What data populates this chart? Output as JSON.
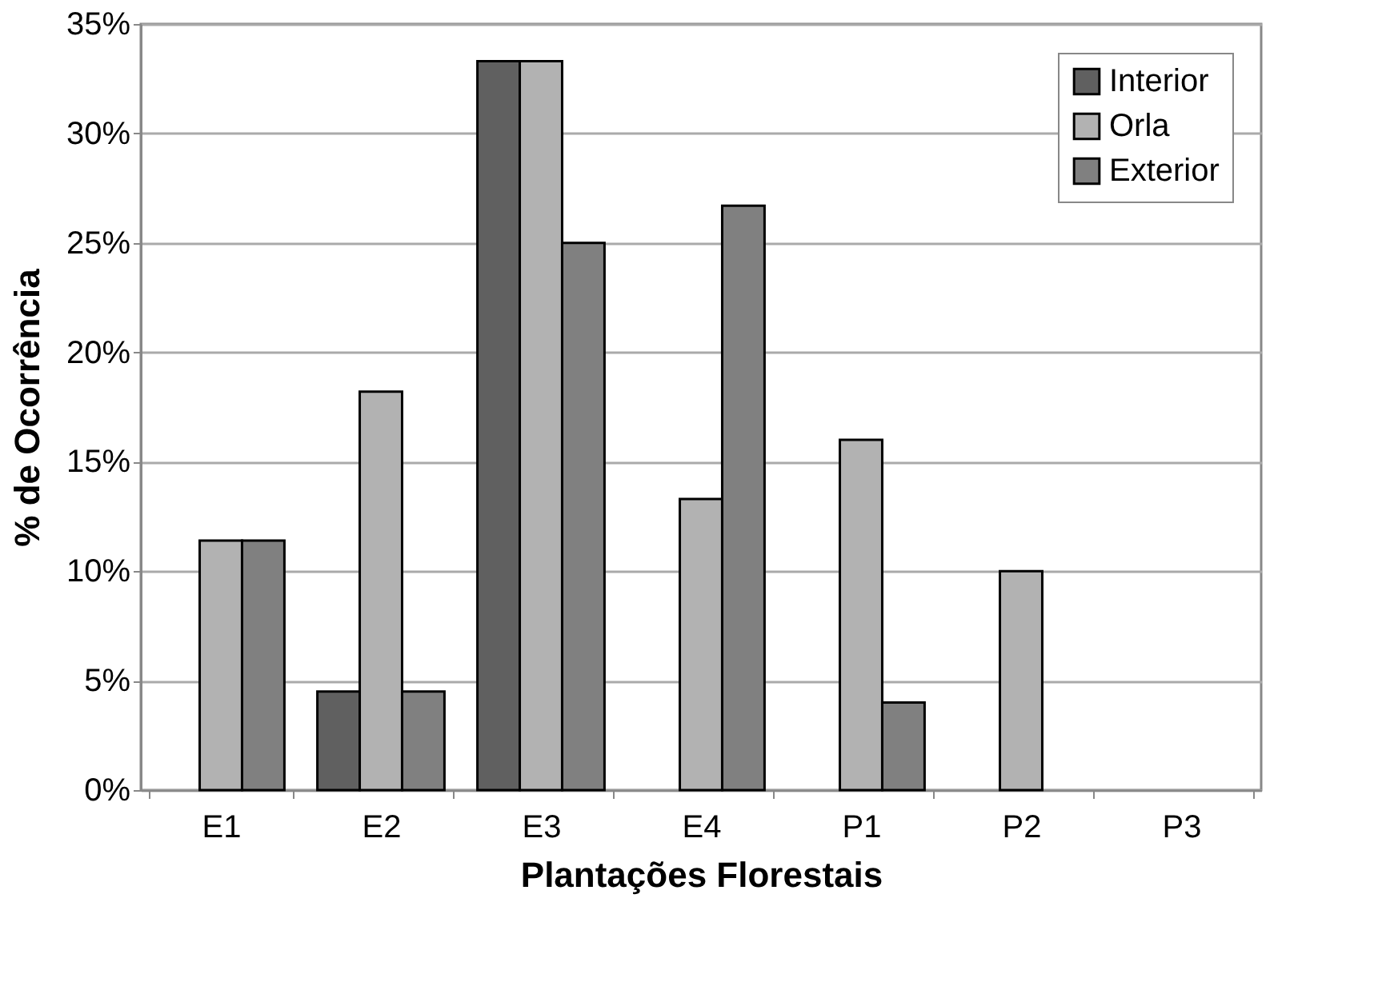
{
  "chart_data": {
    "type": "bar",
    "xlabel": "Plantações Florestais",
    "ylabel": "% de Ocorrência",
    "categories": [
      "E1",
      "E2",
      "E3",
      "E4",
      "P1",
      "P2",
      "P3"
    ],
    "series": [
      {
        "name": "Interior",
        "color": "#606060",
        "values": [
          null,
          4.5,
          33.3,
          null,
          null,
          null,
          null
        ]
      },
      {
        "name": "Orla",
        "color": "#b2b2b2",
        "values": [
          11.4,
          18.2,
          33.3,
          13.3,
          16,
          10,
          null
        ]
      },
      {
        "name": "Exterior",
        "color": "#808080",
        "values": [
          11.4,
          4.5,
          25,
          26.7,
          4,
          null,
          null
        ]
      }
    ],
    "ylim": [
      0,
      35
    ],
    "yticks": [
      {
        "value": 0,
        "label": "0%"
      },
      {
        "value": 5,
        "label": "5%"
      },
      {
        "value": 10,
        "label": "10%"
      },
      {
        "value": 15,
        "label": "15%"
      },
      {
        "value": 20,
        "label": "20%"
      },
      {
        "value": 25,
        "label": "25%"
      },
      {
        "value": 30,
        "label": "30%"
      },
      {
        "value": 35,
        "label": "35%"
      }
    ],
    "grid": "y",
    "legend": "top right"
  }
}
